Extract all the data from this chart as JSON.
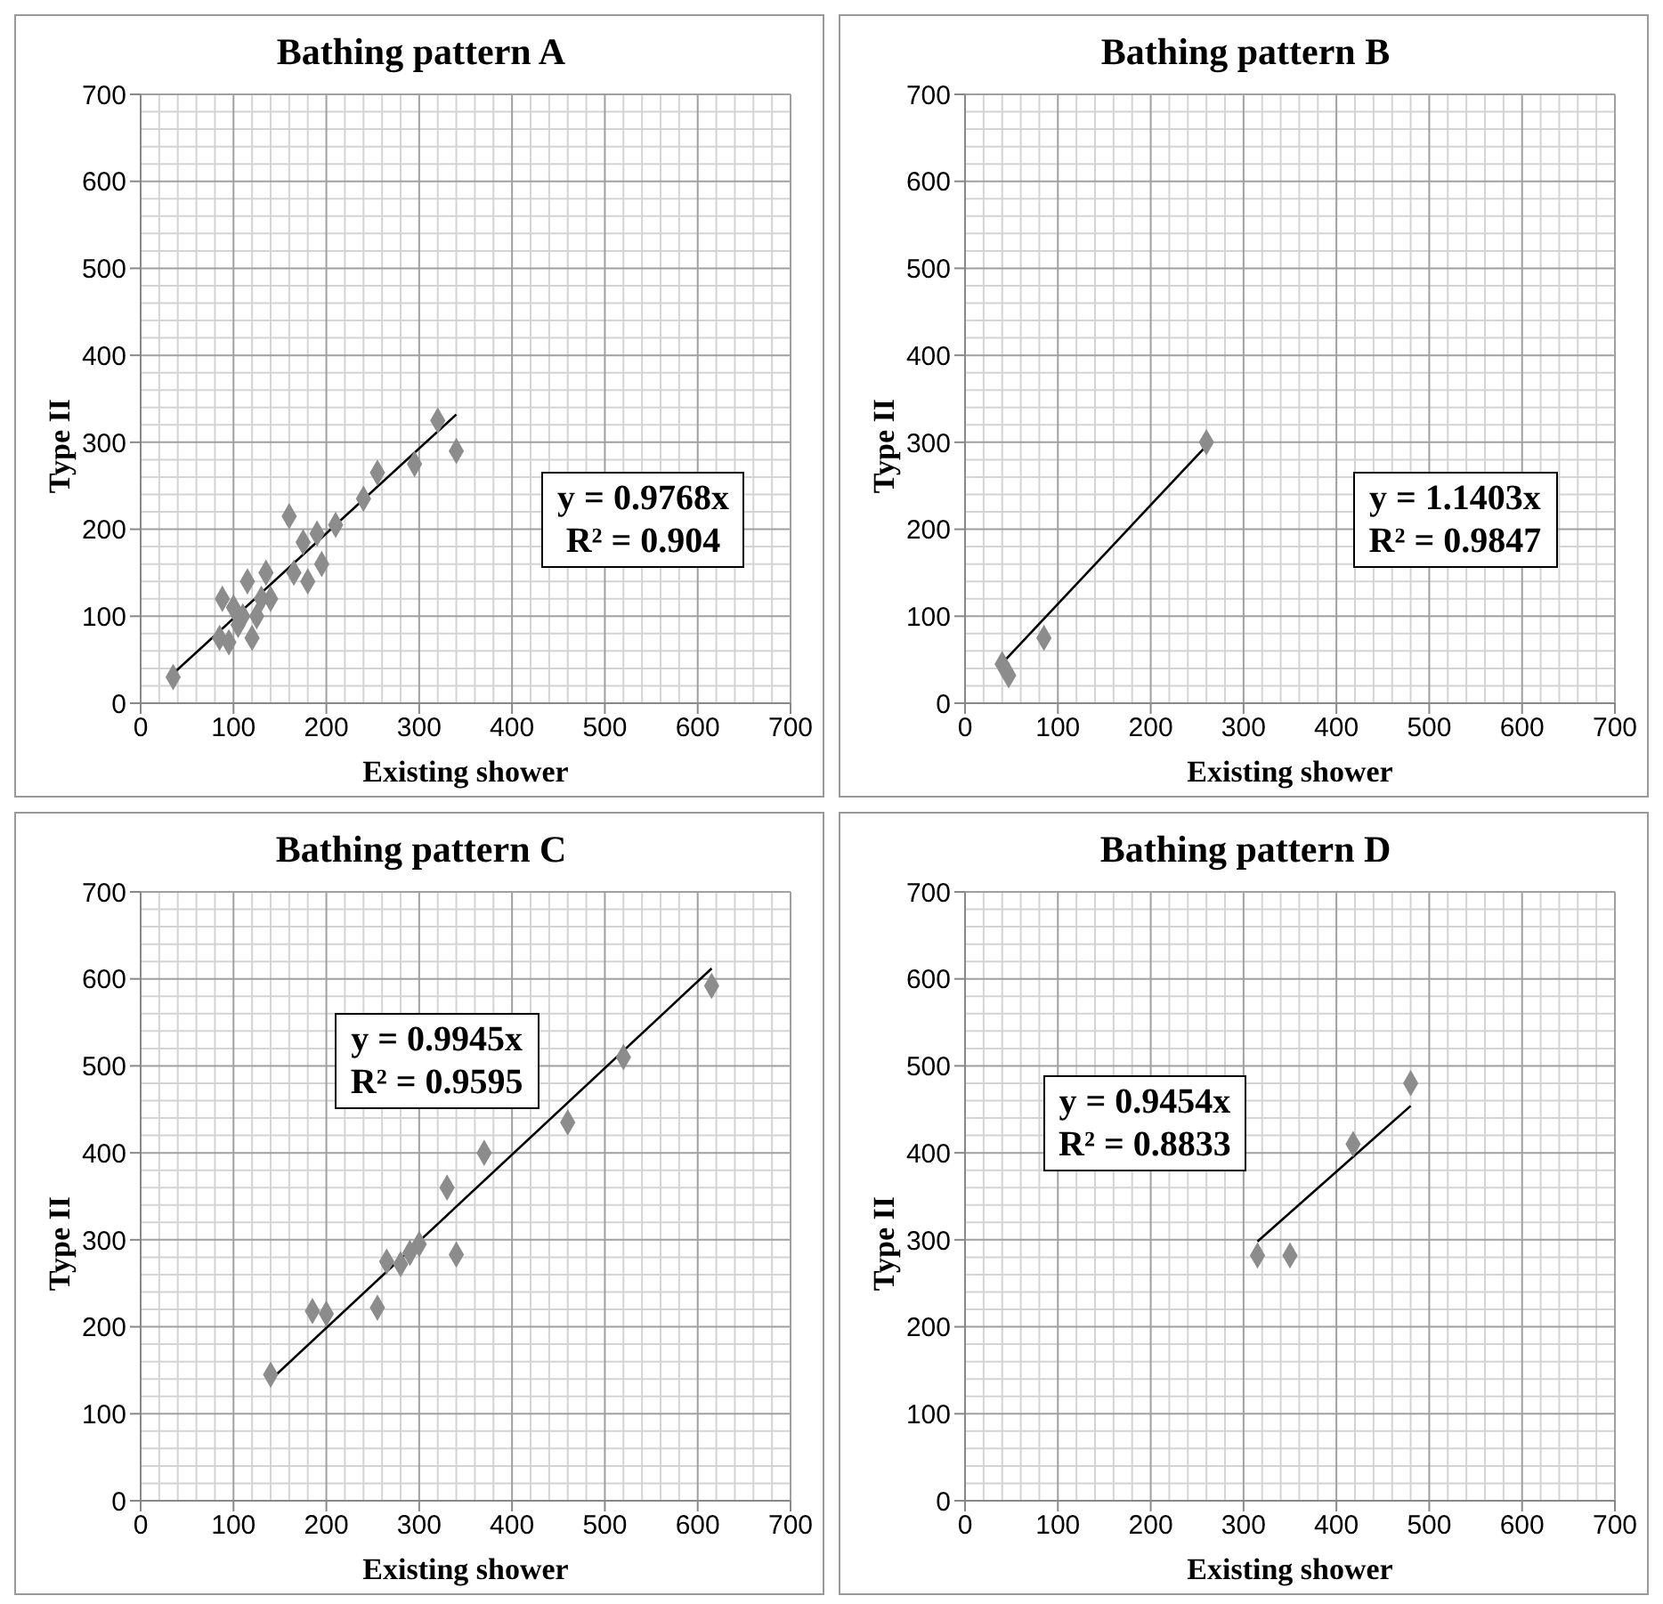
{
  "chart_data": [
    {
      "type": "scatter",
      "title": "Bathing pattern A",
      "xlabel": "Existing shower",
      "ylabel": "Type II",
      "xlim": [
        0,
        700
      ],
      "ylim": [
        0,
        700
      ],
      "xticks": [
        0,
        100,
        200,
        300,
        400,
        500,
        600,
        700
      ],
      "yticks": [
        0,
        100,
        200,
        300,
        400,
        500,
        600,
        700
      ],
      "grid": true,
      "annotations": [
        "y = 0.9768x",
        "R² = 0.904"
      ],
      "series": [
        {
          "marker": "diamond",
          "color": "#8c8c8c",
          "x": [
            35,
            85,
            88,
            95,
            100,
            105,
            110,
            115,
            120,
            125,
            130,
            135,
            140,
            160,
            165,
            175,
            180,
            190,
            195,
            210,
            240,
            255,
            295,
            320,
            340
          ],
          "values": [
            30,
            75,
            120,
            70,
            110,
            90,
            100,
            140,
            75,
            100,
            120,
            150,
            120,
            215,
            150,
            185,
            140,
            195,
            160,
            205,
            235,
            265,
            275,
            325,
            290
          ]
        },
        {
          "type": "line",
          "marker": "none",
          "color": "#000000",
          "x": [
            35,
            340
          ],
          "values": [
            34,
            332
          ]
        }
      ]
    },
    {
      "type": "scatter",
      "title": "Bathing pattern B",
      "xlabel": "Existing shower",
      "ylabel": "Type II",
      "xlim": [
        0,
        700
      ],
      "ylim": [
        0,
        700
      ],
      "xticks": [
        0,
        100,
        200,
        300,
        400,
        500,
        600,
        700
      ],
      "yticks": [
        0,
        100,
        200,
        300,
        400,
        500,
        600,
        700
      ],
      "grid": true,
      "annotations": [
        "y = 1.1403x",
        "R² = 0.9847"
      ],
      "series": [
        {
          "marker": "diamond",
          "color": "#8c8c8c",
          "x": [
            40,
            47,
            85,
            260
          ],
          "values": [
            45,
            32,
            75,
            300
          ]
        },
        {
          "type": "line",
          "marker": "none",
          "color": "#000000",
          "x": [
            40,
            260
          ],
          "values": [
            46,
            296
          ]
        }
      ]
    },
    {
      "type": "scatter",
      "title": "Bathing pattern C",
      "xlabel": "Existing shower",
      "ylabel": "Type II",
      "xlim": [
        0,
        700
      ],
      "ylim": [
        0,
        700
      ],
      "xticks": [
        0,
        100,
        200,
        300,
        400,
        500,
        600,
        700
      ],
      "yticks": [
        0,
        100,
        200,
        300,
        400,
        500,
        600,
        700
      ],
      "grid": true,
      "annotations": [
        "y = 0.9945x",
        "R² = 0.9595"
      ],
      "series": [
        {
          "marker": "diamond",
          "color": "#8c8c8c",
          "x": [
            140,
            185,
            200,
            255,
            265,
            280,
            290,
            300,
            330,
            340,
            370,
            460,
            520,
            615
          ],
          "values": [
            145,
            218,
            215,
            222,
            275,
            272,
            285,
            295,
            360,
            283,
            400,
            435,
            510,
            592
          ]
        },
        {
          "type": "line",
          "marker": "none",
          "color": "#000000",
          "x": [
            140,
            615
          ],
          "values": [
            139,
            612
          ]
        }
      ]
    },
    {
      "type": "scatter",
      "title": "Bathing pattern D",
      "xlabel": "Existing shower",
      "ylabel": "Type II",
      "xlim": [
        0,
        700
      ],
      "ylim": [
        0,
        700
      ],
      "xticks": [
        0,
        100,
        200,
        300,
        400,
        500,
        600,
        700
      ],
      "yticks": [
        0,
        100,
        200,
        300,
        400,
        500,
        600,
        700
      ],
      "grid": true,
      "annotations": [
        "y = 0.9454x",
        "R² = 0.8833"
      ],
      "series": [
        {
          "marker": "diamond",
          "color": "#8c8c8c",
          "x": [
            315,
            350,
            418,
            480
          ],
          "values": [
            282,
            282,
            410,
            480
          ]
        },
        {
          "type": "line",
          "marker": "none",
          "color": "#000000",
          "x": [
            315,
            480
          ],
          "values": [
            298,
            454
          ]
        }
      ]
    }
  ]
}
